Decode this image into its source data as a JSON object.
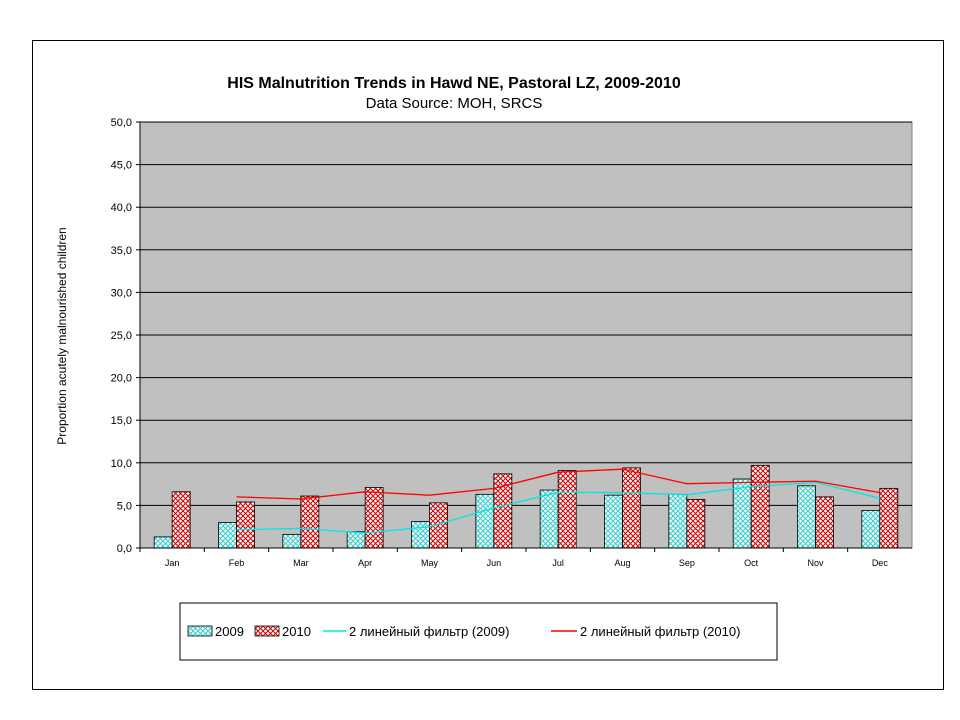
{
  "chart_data": {
    "type": "bar",
    "title": "HIS Malnutrition Trends in Hawd NE, Pastoral LZ, 2009-2010",
    "subtitle": "Data Source: MOH, SRCS",
    "ylabel": "Proportion acutely malnourished children",
    "xlabel": "",
    "ylim": [
      0,
      50
    ],
    "y_ticks": [
      "0,0",
      "5,0",
      "10,0",
      "15,0",
      "20,0",
      "25,0",
      "30,0",
      "35,0",
      "40,0",
      "45,0",
      "50,0"
    ],
    "y_tick_values": [
      0,
      5,
      10,
      15,
      20,
      25,
      30,
      35,
      40,
      45,
      50
    ],
    "grid": true,
    "plot_background": "#c0c0c0",
    "categories": [
      "Jan",
      "Feb",
      "Mar",
      "Apr",
      "May",
      "Jun",
      "Jul",
      "Aug",
      "Sep",
      "Oct",
      "Nov",
      "Dec"
    ],
    "series": [
      {
        "name": "2009",
        "kind": "bar",
        "color": "#33cccc",
        "pattern": "crosshatch",
        "values": [
          1.3,
          3.0,
          1.6,
          1.9,
          3.1,
          6.3,
          6.8,
          6.2,
          6.3,
          8.1,
          7.3,
          4.4
        ]
      },
      {
        "name": "2010",
        "kind": "bar",
        "color": "#cc0000",
        "pattern": "crosshatch",
        "values": [
          6.6,
          5.4,
          6.1,
          7.1,
          5.3,
          8.7,
          9.1,
          9.4,
          5.7,
          9.7,
          6.0,
          7.0
        ]
      },
      {
        "name": "2 линейный фильтр (2009)",
        "kind": "line",
        "color": "#00e5e5",
        "values": [
          null,
          2.15,
          2.3,
          1.75,
          2.5,
          4.7,
          6.55,
          6.5,
          6.25,
          7.2,
          7.7,
          5.85
        ]
      },
      {
        "name": "2 линейный фильтр (2010)",
        "kind": "line",
        "color": "#ff0000",
        "values": [
          null,
          6.0,
          5.75,
          6.6,
          6.2,
          7.0,
          8.9,
          9.25,
          7.55,
          7.7,
          7.85,
          6.5
        ]
      }
    ],
    "legend_placement": "bottom"
  }
}
